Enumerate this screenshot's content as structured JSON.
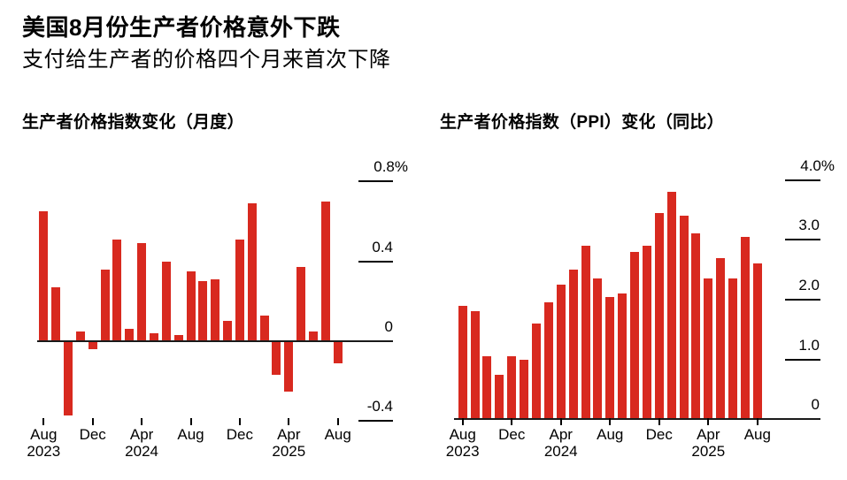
{
  "header": {
    "title": "美国8月份生产者价格意外下跌",
    "subtitle": "支付给生产者的价格四个月来首次下降"
  },
  "colors": {
    "bar_red": "#d8291f",
    "axis_black": "#1a1a1a",
    "text_black": "#000000",
    "background": "#ffffff"
  },
  "chart_data": [
    {
      "type": "bar",
      "title": "生产者价格指数变化（月度）",
      "unit": "%",
      "legend": "none",
      "grid": "right-side tick dashes only",
      "ylim": [
        -0.4,
        0.8
      ],
      "x": [
        "Aug 2023",
        "Sep 2023",
        "Oct 2023",
        "Nov 2023",
        "Dec 2023",
        "Jan 2024",
        "Feb 2024",
        "Mar 2024",
        "Apr 2024",
        "May 2024",
        "Jun 2024",
        "Jul 2024",
        "Aug 2024",
        "Sep 2024",
        "Oct 2024",
        "Nov 2024",
        "Dec 2024",
        "Jan 2025",
        "Feb 2025",
        "Mar 2025",
        "Apr 2025",
        "May 2025",
        "Jun 2025",
        "Jul 2025",
        "Aug 2025"
      ],
      "values": [
        0.65,
        0.27,
        -0.37,
        0.05,
        -0.04,
        0.36,
        0.51,
        0.06,
        0.49,
        0.04,
        0.4,
        0.03,
        0.35,
        0.3,
        0.31,
        0.1,
        0.51,
        0.69,
        0.13,
        -0.17,
        -0.25,
        0.37,
        0.05,
        0.7,
        -0.11
      ],
      "yticks": [
        {
          "value": 0.8,
          "label": "0.8%"
        },
        {
          "value": 0.4,
          "label": "0.4"
        },
        {
          "value": 0.0,
          "label": "0"
        },
        {
          "value": -0.4,
          "label": "-0.4"
        }
      ],
      "xticks": [
        {
          "at": 0,
          "month": "Aug",
          "year": "2023"
        },
        {
          "at": 4,
          "month": "Dec"
        },
        {
          "at": 8,
          "month": "Apr",
          "year": "2024"
        },
        {
          "at": 12,
          "month": "Aug"
        },
        {
          "at": 16,
          "month": "Dec"
        },
        {
          "at": 20,
          "month": "Apr",
          "year": "2025"
        },
        {
          "at": 24,
          "month": "Aug"
        }
      ]
    },
    {
      "type": "bar",
      "title": "生产者价格指数（PPI）变化（同比）",
      "unit": "%",
      "legend": "none",
      "grid": "right-side tick dashes only",
      "ylim": [
        0,
        4.0
      ],
      "x": [
        "Aug 2023",
        "Sep 2023",
        "Oct 2023",
        "Nov 2023",
        "Dec 2023",
        "Jan 2024",
        "Feb 2024",
        "Mar 2024",
        "Apr 2024",
        "May 2024",
        "Jun 2024",
        "Jul 2024",
        "Aug 2024",
        "Sep 2024",
        "Oct 2024",
        "Nov 2024",
        "Dec 2024",
        "Jan 2025",
        "Feb 2025",
        "Mar 2025",
        "Apr 2025",
        "May 2025",
        "Jun 2025",
        "Jul 2025",
        "Aug 2025"
      ],
      "values": [
        1.9,
        1.8,
        1.05,
        0.75,
        1.05,
        1.0,
        1.6,
        1.95,
        2.25,
        2.5,
        2.9,
        2.35,
        2.05,
        2.1,
        2.8,
        2.9,
        3.45,
        3.8,
        3.4,
        3.1,
        2.35,
        2.7,
        2.35,
        3.05,
        2.6
      ],
      "yticks": [
        {
          "value": 4.0,
          "label": "4.0%"
        },
        {
          "value": 3.0,
          "label": "3.0"
        },
        {
          "value": 2.0,
          "label": "2.0"
        },
        {
          "value": 1.0,
          "label": "1.0"
        },
        {
          "value": 0.0,
          "label": "0"
        }
      ],
      "xticks": [
        {
          "at": 0,
          "month": "Aug",
          "year": "2023"
        },
        {
          "at": 4,
          "month": "Dec"
        },
        {
          "at": 8,
          "month": "Apr",
          "year": "2024"
        },
        {
          "at": 12,
          "month": "Aug"
        },
        {
          "at": 16,
          "month": "Dec"
        },
        {
          "at": 20,
          "month": "Apr",
          "year": "2025"
        },
        {
          "at": 24,
          "month": "Aug"
        }
      ]
    }
  ]
}
